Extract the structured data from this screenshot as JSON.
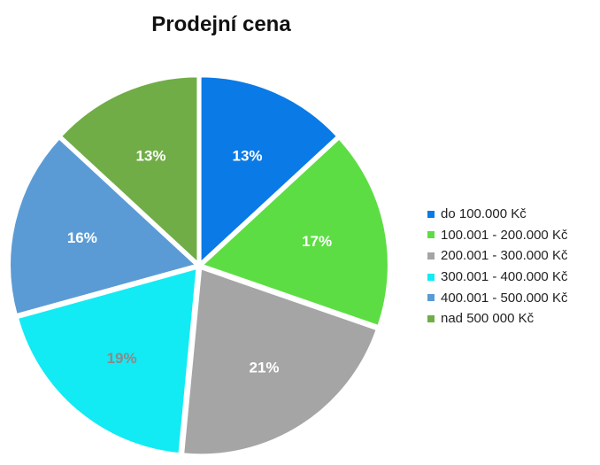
{
  "chart_data": {
    "type": "pie",
    "title": "Prodejní cena",
    "legend_position": "right",
    "slices": [
      {
        "label": "do 100.000 Kč",
        "value": 13,
        "value_label": "13%",
        "color": "#0a7ae6",
        "label_color": "#ffffff"
      },
      {
        "label": "100.001 - 200.000 Kč",
        "value": 17,
        "value_label": "17%",
        "color": "#5ddd44",
        "label_color": "#ffffff"
      },
      {
        "label": "200.001 - 300.000 Kč",
        "value": 21,
        "value_label": "21%",
        "color": "#a5a5a5",
        "label_color": "#ffffff"
      },
      {
        "label": "300.001 - 400.000 Kč",
        "value": 19,
        "value_label": "19%",
        "color": "#12ebf3",
        "label_color": "#8a8a8a"
      },
      {
        "label": "400.001 - 500.000 Kč",
        "value": 16,
        "value_label": "16%",
        "color": "#5b9bd5",
        "label_color": "#ffffff"
      },
      {
        "label": "nad 500 000 Kč",
        "value": 13,
        "value_label": "13%",
        "color": "#70ad47",
        "label_color": "#ffffff"
      }
    ]
  }
}
